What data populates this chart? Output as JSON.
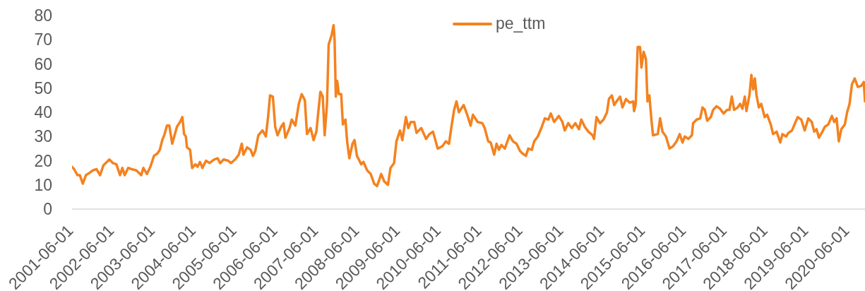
{
  "chart_data": {
    "type": "line",
    "legend": "top",
    "grid": false,
    "marker": "none",
    "line_style": "solid",
    "ylim": [
      0,
      80
    ],
    "yticks": [
      0,
      10,
      20,
      30,
      40,
      50,
      60,
      70,
      80
    ],
    "xlim": [
      "2001-06-01",
      "2020-10-30"
    ],
    "xticks": [
      "2001-06-01",
      "2002-06-01",
      "2003-06-01",
      "2004-06-01",
      "2005-06-01",
      "2006-06-01",
      "2007-06-01",
      "2008-06-01",
      "2009-06-01",
      "2010-06-01",
      "2011-06-01",
      "2012-06-01",
      "2013-06-01",
      "2014-06-01",
      "2015-06-01",
      "2016-06-01",
      "2017-06-01",
      "2018-06-01",
      "2019-06-01",
      "2020-06-01"
    ],
    "x": [
      "2001-06-01",
      "2001-06-20",
      "2001-07-20",
      "2001-08-10",
      "2001-09-05",
      "2001-10-03",
      "2001-11-05",
      "2001-12-05",
      "2002-01-06",
      "2002-02-07",
      "2002-03-08",
      "2002-05-01",
      "2002-06-02",
      "2002-07-03",
      "2002-08-04",
      "2002-08-25",
      "2002-09-15",
      "2002-10-16",
      "2002-11-17",
      "2002-12-28",
      "2003-02-10",
      "2003-03-01",
      "2003-04-02",
      "2003-05-03",
      "2003-06-04",
      "2003-07-05",
      "2003-07-26",
      "2003-08-17",
      "2003-09-07",
      "2003-09-28",
      "2003-10-19",
      "2003-11-14",
      "2003-12-05",
      "2003-12-26",
      "2004-01-23",
      "2004-02-13",
      "2004-02-28",
      "2004-03-15",
      "2004-03-25",
      "2004-04-22",
      "2004-05-10",
      "2004-06-08",
      "2004-06-28",
      "2004-07-19",
      "2004-08-10",
      "2004-09-11",
      "2004-10-12",
      "2004-11-23",
      "2004-12-24",
      "2005-01-15",
      "2005-02-16",
      "2005-03-28",
      "2005-04-22",
      "2005-05-30",
      "2005-07-01",
      "2005-07-28",
      "2005-08-12",
      "2005-09-13",
      "2005-10-15",
      "2005-11-05",
      "2005-11-26",
      "2005-12-23",
      "2006-01-29",
      "2006-02-28",
      "2006-03-20",
      "2006-04-07",
      "2006-05-02",
      "2006-05-23",
      "2006-06-13",
      "2006-07-15",
      "2006-08-06",
      "2006-08-22",
      "2006-09-28",
      "2006-10-18",
      "2006-11-19",
      "2006-12-20",
      "2007-01-15",
      "2007-02-12",
      "2007-03-03",
      "2007-04-04",
      "2007-05-01",
      "2007-05-26",
      "2007-06-12",
      "2007-07-01",
      "2007-07-22",
      "2007-08-08",
      "2007-08-29",
      "2007-09-13",
      "2007-10-10",
      "2007-10-27",
      "2007-11-05",
      "2007-11-16",
      "2007-11-28",
      "2007-12-13",
      "2008-01-03",
      "2008-01-18",
      "2008-02-10",
      "2008-02-25",
      "2008-03-16",
      "2008-04-13",
      "2008-05-01",
      "2008-05-23",
      "2008-06-30",
      "2008-07-20",
      "2008-08-22",
      "2008-09-23",
      "2008-10-24",
      "2008-11-19",
      "2008-12-26",
      "2009-01-21",
      "2009-02-24",
      "2009-03-19",
      "2009-04-20",
      "2009-05-11",
      "2009-06-12",
      "2009-07-03",
      "2009-08-04",
      "2009-08-25",
      "2009-09-16",
      "2009-10-17",
      "2009-11-07",
      "2009-12-19",
      "2010-01-31",
      "2010-03-02",
      "2010-04-03",
      "2010-05-15",
      "2010-06-26",
      "2010-07-27",
      "2010-08-24",
      "2010-09-18",
      "2010-10-09",
      "2010-10-30",
      "2010-11-20",
      "2011-01-02",
      "2011-02-03",
      "2011-03-05",
      "2011-03-26",
      "2011-05-07",
      "2011-06-18",
      "2011-07-09",
      "2011-08-10",
      "2011-09-01",
      "2011-10-02",
      "2011-10-23",
      "2011-11-14",
      "2011-12-05",
      "2012-01-05",
      "2012-02-17",
      "2012-03-18",
      "2012-04-19",
      "2012-05-20",
      "2012-06-11",
      "2012-07-12",
      "2012-08-02",
      "2012-09-03",
      "2012-09-24",
      "2012-10-26",
      "2012-11-27",
      "2012-12-28",
      "2013-01-29",
      "2013-02-19",
      "2013-03-21",
      "2013-05-02",
      "2013-06-03",
      "2013-06-24",
      "2013-07-25",
      "2013-08-26",
      "2013-09-27",
      "2013-10-29",
      "2013-11-19",
      "2013-12-20",
      "2014-01-21",
      "2014-02-28",
      "2014-03-13",
      "2014-04-04",
      "2014-05-05",
      "2014-06-06",
      "2014-07-07",
      "2014-07-24",
      "2014-08-19",
      "2014-09-09",
      "2014-09-30",
      "2014-11-01",
      "2014-11-22",
      "2014-12-24",
      "2015-01-25",
      "2015-02-26",
      "2015-03-06",
      "2015-03-21",
      "2015-04-07",
      "2015-04-28",
      "2015-05-11",
      "2015-05-30",
      "2015-06-20",
      "2015-07-04",
      "2015-07-21",
      "2015-08-08",
      "2015-08-22",
      "2015-10-04",
      "2015-10-25",
      "2015-11-15",
      "2015-12-16",
      "2016-01-17",
      "2016-02-18",
      "2016-03-20",
      "2016-04-17",
      "2016-05-12",
      "2016-06-02",
      "2016-07-03",
      "2016-08-04",
      "2016-08-15",
      "2016-09-16",
      "2016-10-17",
      "2016-11-07",
      "2016-11-28",
      "2016-12-19",
      "2017-01-20",
      "2017-02-10",
      "2017-03-12",
      "2017-04-13",
      "2017-05-14",
      "2017-06-15",
      "2017-07-06",
      "2017-07-27",
      "2017-08-17",
      "2017-09-18",
      "2017-10-09",
      "2017-10-30",
      "2017-11-20",
      "2017-12-05",
      "2018-01-02",
      "2018-01-18",
      "2018-02-03",
      "2018-02-18",
      "2018-03-05",
      "2018-03-26",
      "2018-04-16",
      "2018-05-17",
      "2018-06-08",
      "2018-07-10",
      "2018-07-31",
      "2018-09-01",
      "2018-10-03",
      "2018-10-23",
      "2018-11-24",
      "2018-12-15",
      "2019-01-16",
      "2019-02-17",
      "2019-03-08",
      "2019-04-09",
      "2019-05-10",
      "2019-06-11",
      "2019-07-12",
      "2019-08-03",
      "2019-08-24",
      "2019-09-14",
      "2019-10-15",
      "2019-11-06",
      "2019-12-07",
      "2020-01-08",
      "2020-01-29",
      "2020-02-19",
      "2020-03-10",
      "2020-04-01",
      "2020-05-03",
      "2020-05-23",
      "2020-06-14",
      "2020-07-05",
      "2020-07-30",
      "2020-08-27",
      "2020-09-28",
      "2020-10-19",
      "2020-10-30"
    ],
    "series": [
      {
        "name": "pe_ttm",
        "color": "#f4821f",
        "values": [
          17.5,
          16.5,
          14,
          14,
          10.5,
          14,
          15,
          16,
          16.5,
          14,
          18,
          20.5,
          19,
          18.5,
          14,
          17,
          14,
          17,
          16.5,
          16,
          14,
          17,
          14.5,
          17.5,
          22,
          23,
          24.5,
          28.5,
          31,
          34.5,
          34.5,
          27,
          30.5,
          34,
          36,
          38,
          31,
          30,
          25.5,
          24.5,
          17,
          18.5,
          17.5,
          19.5,
          17,
          20,
          19,
          20.5,
          21,
          19,
          20.5,
          20,
          19,
          20.5,
          22.5,
          27,
          22.5,
          25.5,
          24.5,
          22,
          24,
          30.5,
          32.5,
          30,
          38,
          47,
          46.5,
          34,
          30.5,
          34,
          35.5,
          29.5,
          33.5,
          37,
          34.5,
          43.5,
          47.5,
          45,
          31,
          33.5,
          28.5,
          32,
          40,
          48.5,
          46.5,
          30.5,
          43.5,
          68,
          72,
          76,
          70,
          46.5,
          53,
          47.5,
          47.5,
          35,
          37,
          28,
          21,
          27,
          28.5,
          22,
          18.5,
          19.5,
          16,
          14.5,
          10.5,
          9.5,
          14.5,
          11.5,
          10,
          17,
          19,
          28,
          32.5,
          28.5,
          38,
          33.5,
          36,
          36,
          31.5,
          33.5,
          29,
          31,
          32,
          25,
          26,
          28,
          27,
          35,
          41,
          44.5,
          40,
          43,
          39,
          34.5,
          39,
          36,
          35.5,
          33.5,
          28,
          27.5,
          22.5,
          27,
          24.5,
          26.5,
          25,
          30.5,
          28,
          27,
          24,
          23,
          22,
          25,
          24.5,
          28,
          30,
          33.5,
          37.5,
          37,
          39.5,
          36,
          38.5,
          36,
          32.5,
          35.5,
          33.5,
          35.5,
          33,
          37,
          34,
          32,
          30.5,
          29,
          38,
          35.5,
          37,
          40,
          45.5,
          47,
          43,
          44.5,
          46.5,
          42,
          45.5,
          44,
          44.5,
          40.5,
          43.5,
          67,
          67,
          58.5,
          65,
          62,
          44.5,
          47,
          37,
          30.5,
          31,
          37.5,
          32,
          30,
          25,
          26,
          28,
          31,
          27.5,
          30,
          29,
          30.5,
          35.5,
          37,
          37.5,
          42,
          41,
          36.5,
          38,
          41,
          42.5,
          41.5,
          39.5,
          41,
          41,
          46.5,
          41,
          42,
          43.5,
          41.5,
          46.5,
          40.5,
          47.5,
          55.5,
          49.5,
          54,
          47,
          42,
          43.5,
          38,
          39,
          35,
          31,
          32,
          27.5,
          31,
          30,
          31.5,
          32.5,
          36,
          38,
          37,
          32.5,
          37.5,
          36,
          32,
          33,
          29.5,
          32,
          34,
          35,
          38.5,
          36,
          37.5,
          28,
          33,
          35,
          40,
          43.5,
          51.5,
          54,
          50.5,
          51,
          52.5,
          44.5
        ]
      }
    ]
  }
}
